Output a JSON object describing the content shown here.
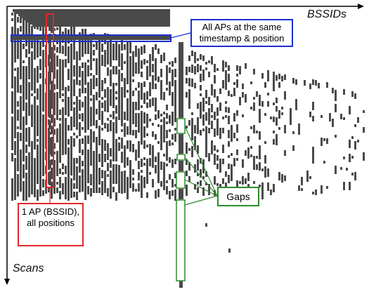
{
  "axes": {
    "x_label": "BSSIDs",
    "y_label": "Scans"
  },
  "annotations": {
    "same_timestamp": "All APs at the same timestamp & position",
    "one_ap": "1 AP (BSSID), all positions",
    "gaps": "Gaps"
  },
  "colors": {
    "cells": "#4a4a4a",
    "blue": "#1a2fd0",
    "red": "#e0282c",
    "green": "#2e8b2e"
  }
}
